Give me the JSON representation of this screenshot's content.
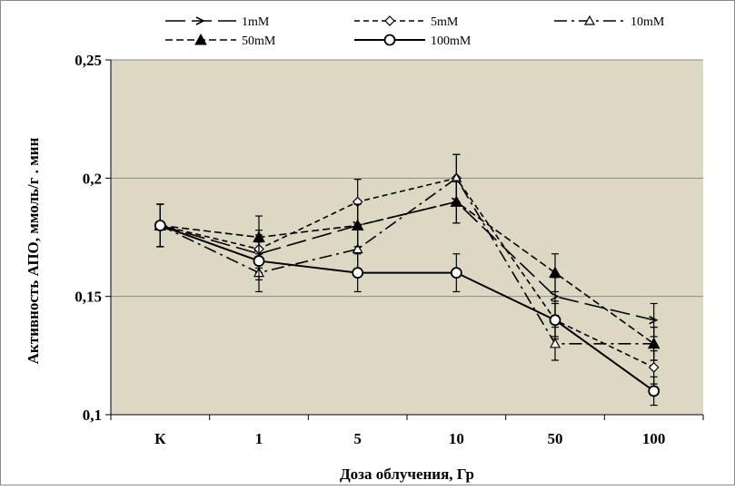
{
  "chart_data": {
    "type": "line",
    "title": "",
    "xlabel": "Доза облучения, Гр",
    "ylabel": "Активность АПО, ммоль/г . мин",
    "categories": [
      "К",
      "1",
      "5",
      "10",
      "50",
      "100"
    ],
    "ylim": [
      0.1,
      0.25
    ],
    "yticks": [
      0.1,
      0.15,
      0.2,
      0.25
    ],
    "ytick_labels": [
      "0,1",
      "0,15",
      "0,2",
      "0,25"
    ],
    "grid": "horizontal",
    "plot_background": "#ddd8c4",
    "legend_position": "top",
    "series": [
      {
        "name": "1mM",
        "values": [
          0.18,
          0.168,
          0.18,
          0.19,
          0.15,
          0.14
        ],
        "errors": [
          0.009,
          0.008,
          0.009,
          0.009,
          0.008,
          0.007
        ],
        "line_style": "long-dash",
        "marker": "open-chevron"
      },
      {
        "name": "5mM",
        "values": [
          0.18,
          0.17,
          0.19,
          0.2,
          0.14,
          0.12
        ],
        "errors": [
          0.009,
          0.008,
          0.0095,
          0.01,
          0.008,
          0.007
        ],
        "line_style": "dash",
        "marker": "open-diamond"
      },
      {
        "name": "10mM",
        "values": [
          0.18,
          0.16,
          0.17,
          0.2,
          0.13,
          0.13
        ],
        "errors": [
          0.009,
          0.008,
          0.009,
          0.01,
          0.007,
          0.007
        ],
        "line_style": "dash-dot",
        "marker": "open-triangle"
      },
      {
        "name": "50mM",
        "values": [
          0.18,
          0.175,
          0.18,
          0.19,
          0.16,
          0.13
        ],
        "errors": [
          0.009,
          0.009,
          0.009,
          0.009,
          0.008,
          0.007
        ],
        "line_style": "short-dash",
        "marker": "filled-triangle"
      },
      {
        "name": "100mM",
        "values": [
          0.18,
          0.165,
          0.16,
          0.16,
          0.14,
          0.11
        ],
        "errors": [
          0.009,
          0.008,
          0.008,
          0.008,
          0.007,
          0.006
        ],
        "line_style": "solid",
        "marker": "open-circle"
      }
    ]
  }
}
